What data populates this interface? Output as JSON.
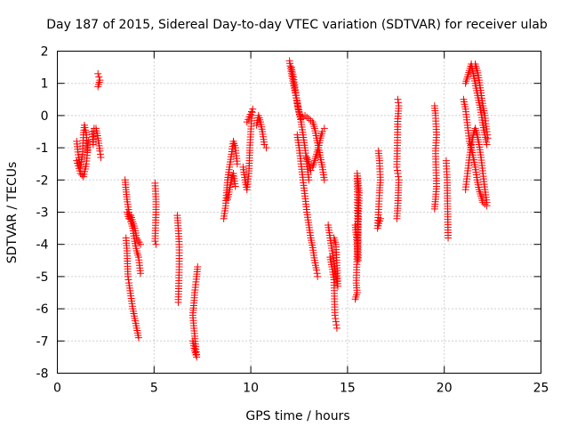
{
  "chart_data": {
    "type": "scatter",
    "title": "Day 187 of 2015, Sidereal Day-to-day VTEC variation (SDTVAR) for receiver ulab",
    "xlabel": "GPS time / hours",
    "ylabel": "SDTVAR / TECUs",
    "xlim": [
      0,
      25
    ],
    "ylim": [
      -8,
      2
    ],
    "xticks": [
      0,
      5,
      10,
      15,
      20,
      25
    ],
    "yticks": [
      -8,
      -7,
      -6,
      -5,
      -4,
      -3,
      -2,
      -1,
      0,
      1,
      2
    ],
    "grid": true,
    "marker": "+",
    "series_color": "#ff0000",
    "segments": [
      {
        "name": "arc-1",
        "points": [
          [
            1.0,
            -0.8
          ],
          [
            1.1,
            -1.3
          ],
          [
            1.2,
            -1.6
          ],
          [
            1.3,
            -1.2
          ],
          [
            1.35,
            -0.6
          ],
          [
            1.4,
            -0.3
          ],
          [
            1.5,
            -0.6
          ],
          [
            1.55,
            -1.1
          ]
        ]
      },
      {
        "name": "arc-2",
        "points": [
          [
            1.0,
            -1.4
          ],
          [
            1.2,
            -1.8
          ],
          [
            1.35,
            -1.9
          ],
          [
            1.5,
            -1.5
          ],
          [
            1.6,
            -0.8
          ]
        ]
      },
      {
        "name": "arc-3",
        "points": [
          [
            1.8,
            -0.5
          ],
          [
            1.85,
            -0.9
          ],
          [
            1.9,
            -0.4
          ],
          [
            2.0,
            -0.4
          ],
          [
            2.1,
            -0.7
          ],
          [
            2.2,
            -1.1
          ],
          [
            2.25,
            -1.3
          ]
        ]
      },
      {
        "name": "arc-4",
        "points": [
          [
            2.1,
            1.3
          ],
          [
            2.15,
            1.2
          ],
          [
            2.2,
            1.1
          ],
          [
            2.1,
            0.9
          ]
        ]
      },
      {
        "name": "arc-5",
        "points": [
          [
            3.5,
            -2.0
          ],
          [
            3.55,
            -2.3
          ],
          [
            3.6,
            -2.6
          ],
          [
            3.7,
            -3.0
          ],
          [
            3.8,
            -3.3
          ],
          [
            3.9,
            -3.5
          ],
          [
            4.0,
            -3.9
          ],
          [
            4.1,
            -4.2
          ],
          [
            4.2,
            -4.4
          ],
          [
            4.3,
            -4.9
          ]
        ]
      },
      {
        "name": "arc-6",
        "points": [
          [
            3.55,
            -3.8
          ],
          [
            3.6,
            -4.2
          ],
          [
            3.65,
            -5.0
          ],
          [
            3.7,
            -5.2
          ],
          [
            3.8,
            -5.6
          ],
          [
            3.9,
            -6.0
          ],
          [
            4.0,
            -6.3
          ],
          [
            4.1,
            -6.6
          ],
          [
            4.2,
            -6.9
          ]
        ]
      },
      {
        "name": "arc-7",
        "points": [
          [
            3.6,
            -3.0
          ],
          [
            3.7,
            -3.2
          ],
          [
            3.8,
            -3.1
          ],
          [
            3.9,
            -3.3
          ],
          [
            4.0,
            -3.5
          ],
          [
            4.1,
            -3.8
          ],
          [
            4.3,
            -4.0
          ]
        ]
      },
      {
        "name": "arc-8",
        "points": [
          [
            5.05,
            -2.1
          ],
          [
            5.1,
            -2.6
          ],
          [
            5.1,
            -3.0
          ],
          [
            5.05,
            -3.9
          ],
          [
            5.1,
            -4.0
          ]
        ]
      },
      {
        "name": "arc-9",
        "points": [
          [
            6.2,
            -3.1
          ],
          [
            6.25,
            -3.5
          ],
          [
            6.3,
            -4.0
          ],
          [
            6.3,
            -4.7
          ],
          [
            6.25,
            -5.8
          ]
        ]
      },
      {
        "name": "arc-10",
        "points": [
          [
            7.0,
            -7.0
          ],
          [
            7.1,
            -7.3
          ],
          [
            7.2,
            -7.5
          ],
          [
            7.0,
            -6.2
          ],
          [
            7.05,
            -5.9
          ],
          [
            7.1,
            -5.5
          ],
          [
            7.2,
            -5.0
          ],
          [
            7.25,
            -4.7
          ]
        ]
      },
      {
        "name": "arc-11",
        "points": [
          [
            8.6,
            -3.2
          ],
          [
            8.7,
            -2.8
          ],
          [
            8.75,
            -2.4
          ],
          [
            8.8,
            -2.0
          ],
          [
            8.9,
            -1.6
          ],
          [
            9.0,
            -1.2
          ],
          [
            9.1,
            -0.8
          ],
          [
            9.2,
            -1.0
          ],
          [
            9.3,
            -1.5
          ]
        ]
      },
      {
        "name": "arc-12",
        "points": [
          [
            8.8,
            -2.6
          ],
          [
            8.9,
            -2.3
          ],
          [
            9.0,
            -2.0
          ],
          [
            9.1,
            -1.8
          ],
          [
            9.2,
            -2.2
          ]
        ]
      },
      {
        "name": "arc-13",
        "points": [
          [
            9.6,
            -1.6
          ],
          [
            9.7,
            -2.0
          ],
          [
            9.8,
            -2.3
          ],
          [
            9.9,
            -1.8
          ],
          [
            9.95,
            -1.0
          ],
          [
            10.0,
            -0.5
          ],
          [
            10.05,
            0.0
          ],
          [
            10.1,
            0.2
          ],
          [
            9.8,
            -0.2
          ]
        ]
      },
      {
        "name": "arc-14",
        "points": [
          [
            10.3,
            -0.3
          ],
          [
            10.4,
            0.0
          ],
          [
            10.5,
            -0.2
          ],
          [
            10.6,
            -0.5
          ],
          [
            10.7,
            -0.9
          ],
          [
            10.8,
            -1.0
          ]
        ]
      },
      {
        "name": "arc-15",
        "points": [
          [
            12.0,
            1.7
          ],
          [
            12.1,
            1.3
          ],
          [
            12.2,
            1.0
          ],
          [
            12.3,
            0.7
          ],
          [
            12.4,
            0.4
          ],
          [
            12.5,
            0.1
          ],
          [
            12.6,
            -0.2
          ],
          [
            12.7,
            -0.6
          ],
          [
            12.8,
            -1.0
          ],
          [
            12.9,
            -1.5
          ],
          [
            13.0,
            -2.0
          ]
        ]
      },
      {
        "name": "arc-16",
        "points": [
          [
            12.1,
            1.5
          ],
          [
            12.2,
            1.2
          ],
          [
            12.3,
            0.8
          ],
          [
            12.45,
            0.2
          ],
          [
            12.6,
            -0.1
          ],
          [
            12.8,
            0.0
          ],
          [
            13.0,
            -0.1
          ],
          [
            13.2,
            -0.2
          ],
          [
            13.3,
            -0.4
          ],
          [
            13.4,
            -0.7
          ],
          [
            13.5,
            -1.0
          ],
          [
            13.6,
            -1.3
          ],
          [
            13.7,
            -1.6
          ],
          [
            13.8,
            -2.0
          ]
        ]
      },
      {
        "name": "arc-17",
        "points": [
          [
            12.4,
            -0.6
          ],
          [
            12.5,
            -1.0
          ],
          [
            12.6,
            -1.5
          ],
          [
            12.7,
            -2.0
          ],
          [
            12.8,
            -2.5
          ],
          [
            12.9,
            -3.0
          ],
          [
            13.0,
            -3.4
          ],
          [
            13.1,
            -3.8
          ],
          [
            13.2,
            -4.1
          ],
          [
            13.3,
            -4.5
          ],
          [
            13.4,
            -4.8
          ],
          [
            13.45,
            -5.0
          ]
        ]
      },
      {
        "name": "arc-18",
        "points": [
          [
            12.9,
            -1.3
          ],
          [
            13.0,
            -1.5
          ],
          [
            13.1,
            -1.7
          ],
          [
            13.2,
            -1.6
          ],
          [
            13.3,
            -1.4
          ],
          [
            13.4,
            -1.2
          ],
          [
            13.5,
            -1.0
          ],
          [
            13.6,
            -0.7
          ],
          [
            13.7,
            -0.5
          ],
          [
            13.8,
            -0.4
          ]
        ]
      },
      {
        "name": "arc-19",
        "points": [
          [
            14.0,
            -3.4
          ],
          [
            14.1,
            -3.8
          ],
          [
            14.2,
            -4.2
          ],
          [
            14.3,
            -4.6
          ],
          [
            14.4,
            -5.0
          ],
          [
            14.5,
            -5.3
          ],
          [
            14.4,
            -4.0
          ],
          [
            14.3,
            -3.8
          ]
        ]
      },
      {
        "name": "arc-20",
        "points": [
          [
            14.1,
            -4.4
          ],
          [
            14.2,
            -4.7
          ],
          [
            14.3,
            -5.1
          ],
          [
            14.35,
            -6.2
          ],
          [
            14.4,
            -6.4
          ],
          [
            14.45,
            -6.6
          ]
        ]
      },
      {
        "name": "arc-21",
        "points": [
          [
            15.4,
            -3.4
          ],
          [
            15.45,
            -3.7
          ],
          [
            15.5,
            -4.0
          ],
          [
            15.55,
            -4.5
          ],
          [
            15.5,
            -1.8
          ],
          [
            15.55,
            -2.1
          ],
          [
            15.6,
            -2.4
          ],
          [
            15.45,
            -5.2
          ],
          [
            15.5,
            -5.5
          ],
          [
            15.4,
            -5.7
          ]
        ]
      },
      {
        "name": "arc-22",
        "points": [
          [
            16.6,
            -1.1
          ],
          [
            16.65,
            -1.4
          ],
          [
            16.7,
            -2.0
          ],
          [
            16.65,
            -2.4
          ],
          [
            16.6,
            -3.0
          ],
          [
            16.55,
            -3.5
          ],
          [
            16.7,
            -3.2
          ]
        ]
      },
      {
        "name": "arc-23",
        "points": [
          [
            17.6,
            0.5
          ],
          [
            17.65,
            0.3
          ],
          [
            17.6,
            -0.1
          ],
          [
            17.55,
            -1.6
          ],
          [
            17.6,
            -1.8
          ],
          [
            17.65,
            -2.0
          ],
          [
            17.6,
            -2.8
          ],
          [
            17.55,
            -3.2
          ]
        ]
      },
      {
        "name": "arc-24",
        "points": [
          [
            19.5,
            0.3
          ],
          [
            19.55,
            0.0
          ],
          [
            19.6,
            -0.6
          ],
          [
            19.55,
            -1.1
          ],
          [
            19.6,
            -2.2
          ],
          [
            19.55,
            -2.6
          ],
          [
            19.5,
            -2.9
          ]
        ]
      },
      {
        "name": "arc-25",
        "points": [
          [
            20.1,
            -1.4
          ],
          [
            20.15,
            -2.0
          ],
          [
            20.2,
            -3.8
          ]
        ]
      },
      {
        "name": "arc-26",
        "points": [
          [
            21.0,
            0.5
          ],
          [
            21.1,
            0.2
          ],
          [
            21.2,
            -0.3
          ],
          [
            21.3,
            -0.8
          ],
          [
            21.4,
            -1.0
          ],
          [
            21.5,
            -1.3
          ],
          [
            21.6,
            -1.6
          ],
          [
            21.7,
            -2.0
          ],
          [
            21.8,
            -2.3
          ],
          [
            21.9,
            -2.5
          ],
          [
            22.0,
            -2.7
          ],
          [
            22.2,
            -2.8
          ]
        ]
      },
      {
        "name": "arc-27",
        "points": [
          [
            21.1,
            1.0
          ],
          [
            21.2,
            1.2
          ],
          [
            21.3,
            1.4
          ],
          [
            21.4,
            1.6
          ],
          [
            21.5,
            1.3
          ],
          [
            21.6,
            1.0
          ],
          [
            21.7,
            0.7
          ],
          [
            21.8,
            0.4
          ],
          [
            21.9,
            0.1
          ],
          [
            22.0,
            -0.3
          ],
          [
            22.1,
            -0.6
          ],
          [
            22.2,
            -0.9
          ]
        ]
      },
      {
        "name": "arc-28",
        "points": [
          [
            21.1,
            -2.3
          ],
          [
            21.2,
            -1.8
          ],
          [
            21.3,
            -1.3
          ],
          [
            21.4,
            -0.9
          ],
          [
            21.5,
            -0.6
          ],
          [
            21.6,
            -0.4
          ],
          [
            21.7,
            -0.6
          ],
          [
            21.8,
            -0.9
          ],
          [
            21.9,
            -1.3
          ],
          [
            22.0,
            -1.8
          ],
          [
            22.1,
            -2.3
          ],
          [
            22.2,
            -2.7
          ]
        ]
      },
      {
        "name": "arc-29",
        "points": [
          [
            21.6,
            1.6
          ],
          [
            21.7,
            1.4
          ],
          [
            21.8,
            1.1
          ],
          [
            21.9,
            0.7
          ],
          [
            22.0,
            0.3
          ],
          [
            22.1,
            0.0
          ],
          [
            22.2,
            -0.5
          ],
          [
            22.25,
            -0.7
          ]
        ]
      }
    ]
  }
}
